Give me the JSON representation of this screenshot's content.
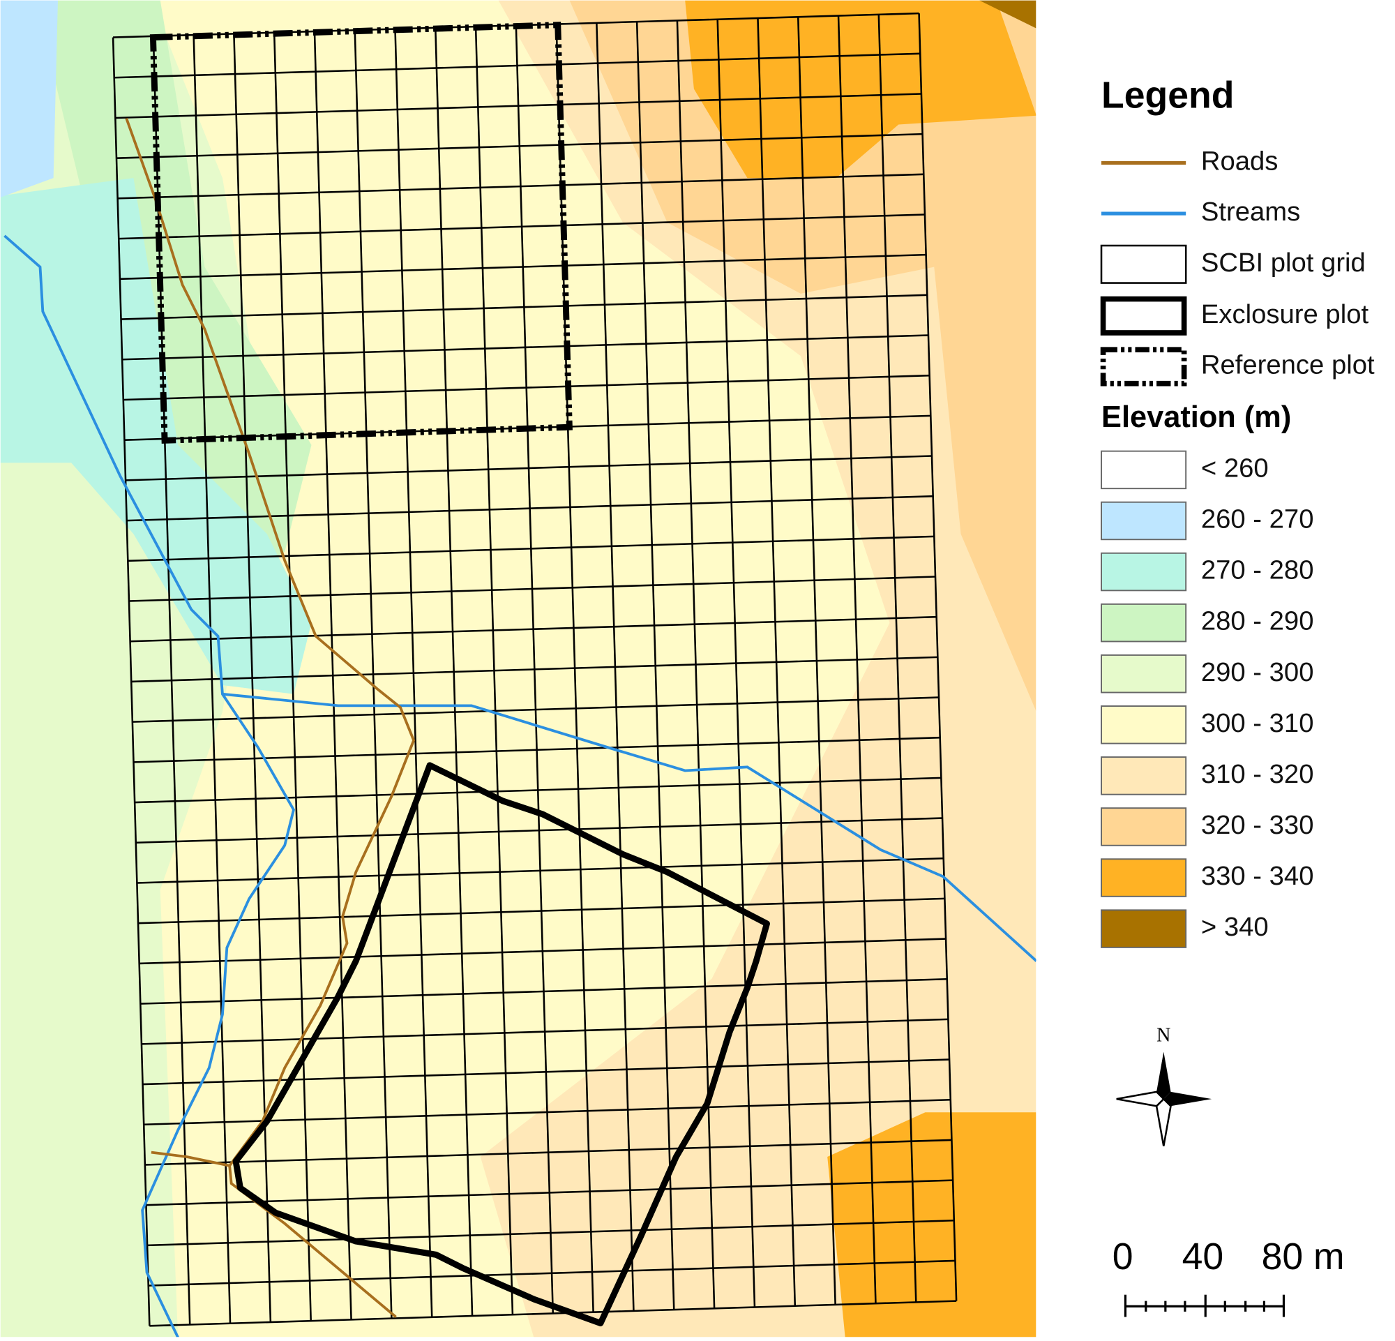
{
  "legend": {
    "title": "Legend",
    "items": [
      {
        "label": "Roads",
        "color": "#a86f1e"
      },
      {
        "label": "Streams",
        "color": "#2b8fe0"
      },
      {
        "label": "SCBI plot grid"
      },
      {
        "label": "Exclosure plot"
      },
      {
        "label": "Reference plot"
      }
    ]
  },
  "elevation": {
    "title": "Elevation (m)",
    "classes": [
      {
        "label": "< 260",
        "color": "#ffffff"
      },
      {
        "label": "260 - 270",
        "color": "#bee6ff"
      },
      {
        "label": "270 - 280",
        "color": "#b8f5e4"
      },
      {
        "label": "280 - 290",
        "color": "#cdf5c2"
      },
      {
        "label": "290 - 300",
        "color": "#e6facb"
      },
      {
        "label": "300 - 310",
        "color": "#fffbc8"
      },
      {
        "label": "310 - 320",
        "color": "#ffe8b8"
      },
      {
        "label": "320 - 330",
        "color": "#ffd694"
      },
      {
        "label": "330 - 340",
        "color": "#ffb224"
      },
      {
        "label": "> 340",
        "color": "#a87200"
      }
    ]
  },
  "north_arrow": {
    "label": "N"
  },
  "scale_bar": {
    "labels": [
      "0",
      "40",
      "80 m"
    ]
  }
}
